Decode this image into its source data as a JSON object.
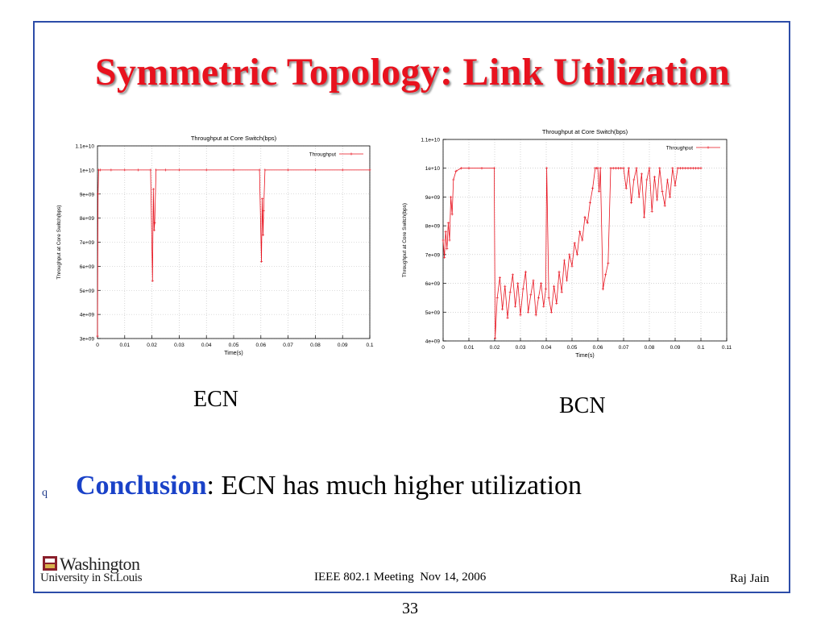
{
  "slide": {
    "title": "Symmetric Topology: Link Utilization",
    "bullet_glyph": "q",
    "conclusion_keyword": "Conclusion",
    "conclusion_rest": ": ECN has much higher utilization",
    "logo_line1": "Washington",
    "logo_line2": "University in St.Louis",
    "footer_center": "IEEE 802.1 Meeting  Nov 14, 2006",
    "footer_right": "Raj Jain",
    "page_number": "33",
    "colors": {
      "frame": "#2c4ca8",
      "title": "#e8121e",
      "keyword": "#1a42c8",
      "series": "#e8121e"
    }
  },
  "chart_data": [
    {
      "type": "line",
      "caption": "ECN",
      "title": "Throughput at Core Switch(bps)",
      "xlabel": "Time(s)",
      "ylabel": "Throughput at Core Switch(bps)",
      "xlim": [
        0,
        0.1
      ],
      "ylim": [
        3000000000.0,
        11000000000.0
      ],
      "xticks": [
        0,
        0.01,
        0.02,
        0.03,
        0.04,
        0.05,
        0.06,
        0.07,
        0.08,
        0.09,
        0.1
      ],
      "xtick_labels": [
        "0",
        "0.01",
        "0.02",
        "0.03",
        "0.04",
        "0.05",
        "0.06",
        "0.07",
        "0.08",
        "0.09",
        "0.1"
      ],
      "yticks": [
        3000000000.0,
        4000000000.0,
        5000000000.0,
        6000000000.0,
        7000000000.0,
        8000000000.0,
        9000000000.0,
        10000000000.0,
        11000000000.0
      ],
      "ytick_labels": [
        "3e+09",
        "4e+09",
        "5e+09",
        "6e+09",
        "7e+09",
        "8e+09",
        "9e+09",
        "1e+10",
        "1.1e+10"
      ],
      "grid": true,
      "legend_position": "top-right",
      "series": [
        {
          "name": "Throughput",
          "x": [
            0,
            0.0002,
            0.0004,
            0.001,
            0.005,
            0.01,
            0.015,
            0.0195,
            0.0202,
            0.0205,
            0.0208,
            0.021,
            0.0215,
            0.025,
            0.03,
            0.04,
            0.05,
            0.0595,
            0.0602,
            0.0605,
            0.0608,
            0.061,
            0.0615,
            0.07,
            0.08,
            0.09,
            0.1
          ],
          "y": [
            3100000000.0,
            9000000000.0,
            10000000000.0,
            10000000000.0,
            10000000000.0,
            10000000000.0,
            10000000000.0,
            10000000000.0,
            5400000000.0,
            9200000000.0,
            7500000000.0,
            7800000000.0,
            10000000000.0,
            10000000000.0,
            10000000000.0,
            10000000000.0,
            10000000000.0,
            10000000000.0,
            6200000000.0,
            8800000000.0,
            7300000000.0,
            8300000000.0,
            10000000000.0,
            10000000000.0,
            10000000000.0,
            10000000000.0,
            10000000000.0
          ]
        }
      ]
    },
    {
      "type": "line",
      "caption": "BCN",
      "title": "Throughput at Core Switch(bps)",
      "xlabel": "Time(s)",
      "ylabel": "Throughput at Core Switch(bps)",
      "xlim": [
        0,
        0.11
      ],
      "ylim": [
        4000000000.0,
        11000000000.0
      ],
      "xticks": [
        0,
        0.01,
        0.02,
        0.03,
        0.04,
        0.05,
        0.06,
        0.07,
        0.08,
        0.09,
        0.1,
        0.11
      ],
      "xtick_labels": [
        "0",
        "0.01",
        "0.02",
        "0.03",
        "0.04",
        "0.05",
        "0.06",
        "0.07",
        "0.08",
        "0.09",
        "0.1",
        "0.11"
      ],
      "yticks": [
        4000000000.0,
        5000000000.0,
        6000000000.0,
        7000000000.0,
        8000000000.0,
        9000000000.0,
        10000000000.0,
        11000000000.0
      ],
      "ytick_labels": [
        "4e+09",
        "5e+09",
        "6e+09",
        "7e+09",
        "8e+09",
        "9e+09",
        "1e+10",
        "1.1e+10"
      ],
      "grid": true,
      "legend_position": "top-right",
      "series": [
        {
          "name": "Throughput",
          "x": [
            0,
            0.0005,
            0.001,
            0.0015,
            0.002,
            0.0025,
            0.003,
            0.0035,
            0.004,
            0.005,
            0.007,
            0.01,
            0.015,
            0.0198,
            0.0202,
            0.021,
            0.022,
            0.023,
            0.024,
            0.025,
            0.026,
            0.027,
            0.028,
            0.029,
            0.03,
            0.031,
            0.032,
            0.033,
            0.034,
            0.035,
            0.036,
            0.037,
            0.038,
            0.039,
            0.0398,
            0.0402,
            0.041,
            0.042,
            0.043,
            0.044,
            0.045,
            0.046,
            0.047,
            0.048,
            0.049,
            0.05,
            0.051,
            0.052,
            0.053,
            0.054,
            0.055,
            0.056,
            0.057,
            0.058,
            0.059,
            0.0595,
            0.06,
            0.0605,
            0.061,
            0.062,
            0.063,
            0.064,
            0.065,
            0.066,
            0.067,
            0.068,
            0.069,
            0.07,
            0.071,
            0.072,
            0.073,
            0.074,
            0.075,
            0.076,
            0.077,
            0.078,
            0.079,
            0.08,
            0.081,
            0.082,
            0.083,
            0.084,
            0.085,
            0.086,
            0.087,
            0.088,
            0.089,
            0.09,
            0.091,
            0.092,
            0.093,
            0.094,
            0.095,
            0.096,
            0.097,
            0.098,
            0.099,
            0.1
          ],
          "y": [
            7500000000.0,
            6900000000.0,
            7800000000.0,
            7200000000.0,
            8100000000.0,
            7500000000.0,
            9000000000.0,
            8400000000.0,
            9600000000.0,
            9900000000.0,
            10000000000.0,
            10000000000.0,
            10000000000.0,
            10000000000.0,
            4100000000.0,
            5500000000.0,
            6200000000.0,
            5100000000.0,
            5900000000.0,
            4800000000.0,
            5700000000.0,
            6300000000.0,
            5200000000.0,
            6000000000.0,
            4900000000.0,
            5800000000.0,
            6400000000.0,
            5000000000.0,
            5600000000.0,
            6100000000.0,
            4900000000.0,
            5500000000.0,
            6000000000.0,
            5200000000.0,
            5800000000.0,
            10000000000.0,
            5500000000.0,
            5000000000.0,
            5900000000.0,
            5300000000.0,
            6400000000.0,
            5700000000.0,
            6800000000.0,
            6100000000.0,
            7000000000.0,
            6600000000.0,
            7400000000.0,
            7000000000.0,
            7800000000.0,
            7500000000.0,
            8300000000.0,
            8100000000.0,
            8800000000.0,
            9300000000.0,
            10000000000.0,
            10000000000.0,
            10000000000.0,
            9200000000.0,
            10000000000.0,
            5800000000.0,
            6300000000.0,
            6700000000.0,
            10000000000.0,
            10000000000.0,
            10000000000.0,
            10000000000.0,
            10000000000.0,
            10000000000.0,
            9300000000.0,
            10000000000.0,
            8800000000.0,
            9600000000.0,
            10000000000.0,
            9000000000.0,
            9800000000.0,
            8300000000.0,
            9600000000.0,
            10000000000.0,
            8500000000.0,
            9700000000.0,
            8900000000.0,
            10000000000.0,
            9200000000.0,
            8700000000.0,
            9600000000.0,
            9000000000.0,
            10000000000.0,
            9400000000.0,
            10000000000.0,
            10000000000.0,
            10000000000.0,
            10000000000.0,
            10000000000.0,
            10000000000.0,
            10000000000.0,
            10000000000.0,
            10000000000.0,
            10000000000.0
          ]
        }
      ]
    }
  ]
}
